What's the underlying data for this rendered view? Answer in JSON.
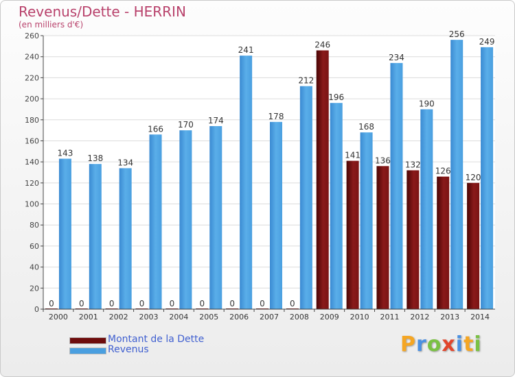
{
  "title": "Revenus/Dette - HERRIN",
  "subtitle": "(en milliers d'€)",
  "colors": {
    "debt": "#7a1010",
    "revenue": "#4a9fe0",
    "title": "#b8416b"
  },
  "logo": {
    "text": "Proxiti",
    "letters": [
      "P",
      "r",
      "o",
      "x",
      "i",
      "t",
      "i"
    ],
    "colors": [
      "#f5a623",
      "#4a90e2",
      "#7ac143",
      "#e2452b",
      "#4a90e2",
      "#f5a623",
      "#7ac143"
    ]
  },
  "chart_data": {
    "type": "bar",
    "categories": [
      "2000",
      "2001",
      "2002",
      "2003",
      "2004",
      "2005",
      "2006",
      "2007",
      "2008",
      "2009",
      "2010",
      "2011",
      "2012",
      "2013",
      "2014"
    ],
    "series": [
      {
        "name": "Montant de la Dette",
        "values": [
          0,
          0,
          0,
          0,
          0,
          0,
          0,
          0,
          0,
          246,
          141,
          136,
          132,
          126,
          120
        ]
      },
      {
        "name": "Revenus",
        "values": [
          143,
          138,
          134,
          166,
          170,
          174,
          241,
          178,
          212,
          196,
          168,
          234,
          190,
          256,
          249
        ]
      }
    ],
    "data_labels": {
      "debt": [
        "0",
        "0",
        "0",
        "0",
        "0",
        "0",
        "0",
        "0",
        "0",
        "246",
        "141",
        "136",
        "132",
        "126",
        "120"
      ],
      "revenue": [
        "143",
        "138",
        "134",
        "166",
        "170",
        "174",
        "241",
        "178",
        "212",
        "196",
        "168",
        "234",
        "190",
        "256",
        "249"
      ]
    },
    "y_ticks": [
      "0",
      "20",
      "40",
      "60",
      "80",
      "100",
      "120",
      "140",
      "160",
      "180",
      "200",
      "220",
      "240",
      "260"
    ],
    "ylim": [
      0,
      260
    ],
    "grid": true,
    "legend": "bottom-left"
  }
}
